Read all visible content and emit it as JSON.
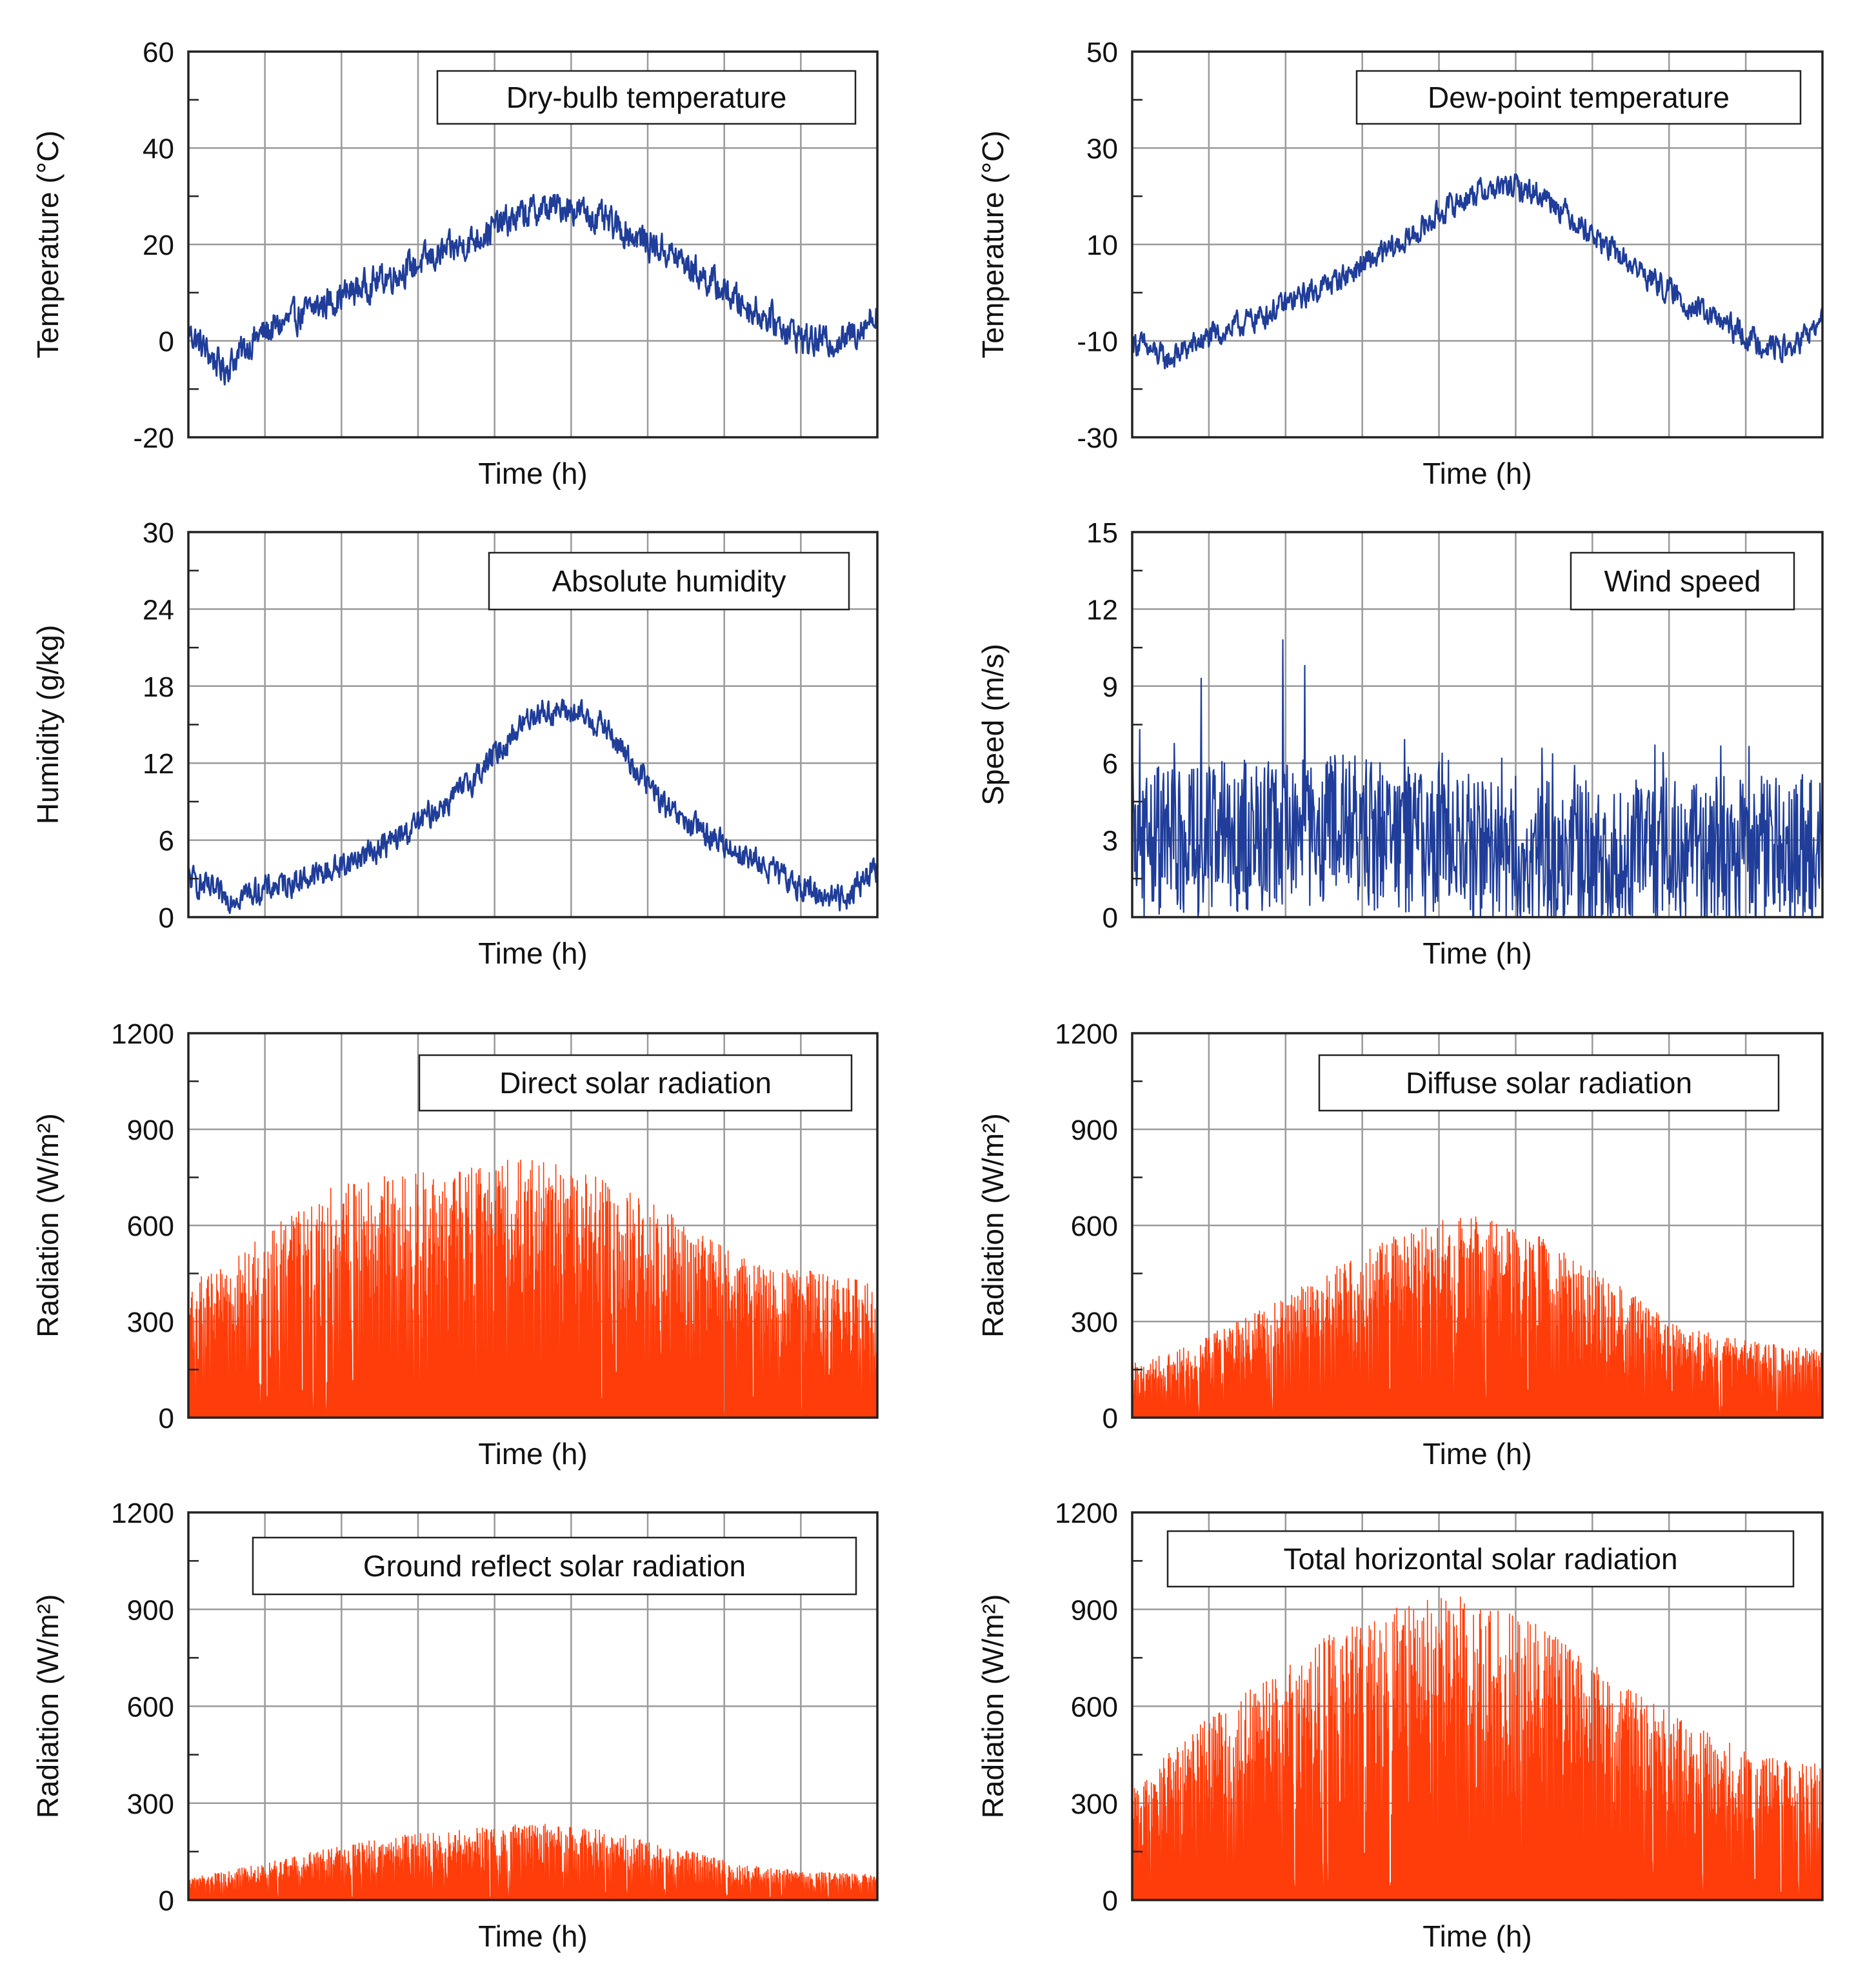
{
  "chart_data": [
    {
      "type": "line",
      "legend": "Dry-bulb temperature",
      "xlabel": "Time (h)",
      "ylabel": "Temperature (°C)",
      "ylim": [
        -20,
        60
      ],
      "yticks": [
        "-20",
        "0",
        "20",
        "40",
        "60"
      ],
      "grid": true,
      "legend_position": "top-right",
      "color": "#1f3d99",
      "series": [
        {
          "name": "Dry-bulb temperature",
          "envelope": {
            "t": [
              0,
              0.05,
              0.1,
              0.2,
              0.3,
              0.4,
              0.45,
              0.5,
              0.55,
              0.6,
              0.7,
              0.8,
              0.9,
              0.95,
              1.0
            ],
            "values": [
              2,
              -6,
              1,
              8,
              14,
              20,
              24,
              27,
              28,
              25,
              18,
              8,
              0,
              0,
              6
            ]
          },
          "noise": 5
        }
      ]
    },
    {
      "type": "line",
      "legend": "Dew-point temperature",
      "xlabel": "Time (h)",
      "ylabel": "Temperature (°C)",
      "ylim": [
        -30,
        50
      ],
      "yticks": [
        "-30",
        "-10",
        "10",
        "30",
        "50"
      ],
      "grid": true,
      "legend_position": "top-right",
      "color": "#1f3d99",
      "series": [
        {
          "name": "Dew-point temperature",
          "envelope": {
            "t": [
              0,
              0.05,
              0.1,
              0.2,
              0.3,
              0.4,
              0.45,
              0.5,
              0.55,
              0.6,
              0.7,
              0.8,
              0.9,
              0.95,
              1.0
            ],
            "values": [
              -10,
              -14,
              -10,
              -4,
              3,
              11,
              17,
              21,
              22,
              20,
              8,
              -2,
              -10,
              -12,
              -6
            ]
          },
          "noise": 4
        }
      ]
    },
    {
      "type": "line",
      "legend": "Absolute humidity",
      "xlabel": "Time (h)",
      "ylabel": "Humidity (g/kg)",
      "ylim": [
        0,
        30
      ],
      "yticks": [
        "0",
        "6",
        "12",
        "18",
        "24",
        "30"
      ],
      "grid": true,
      "legend_position": "top-right",
      "color": "#1f3d99",
      "series": [
        {
          "name": "Absolute humidity",
          "envelope": {
            "t": [
              0,
              0.05,
              0.1,
              0.2,
              0.3,
              0.4,
              0.45,
              0.5,
              0.55,
              0.6,
              0.7,
              0.8,
              0.9,
              0.95,
              1.0
            ],
            "values": [
              3,
              1.5,
              2,
              3.5,
              6,
              10,
              13,
              16,
              16,
              15,
              8,
              5,
              2,
              1.5,
              4
            ]
          },
          "noise": 1.6
        }
      ]
    },
    {
      "type": "line",
      "legend": "Wind speed",
      "xlabel": "Time (h)",
      "ylabel": "Speed (m/s)",
      "ylim": [
        0,
        15
      ],
      "yticks": [
        "0",
        "3",
        "6",
        "9",
        "12",
        "15"
      ],
      "grid": true,
      "legend_position": "top-right",
      "color": "#1f3d99",
      "series": [
        {
          "name": "Wind speed",
          "envelope": {
            "t": [
              0,
              0.1,
              0.2,
              0.3,
              0.4,
              0.5,
              0.6,
              0.7,
              0.8,
              0.9,
              1.0
            ],
            "values": [
              3,
              3,
              3.2,
              3.5,
              3,
              2.5,
              2.3,
              2.3,
              2.5,
              2.6,
              2.6
            ]
          },
          "noise": 3,
          "peaks": [
            10.8,
            9.8,
            9.3
          ]
        }
      ]
    },
    {
      "type": "area",
      "legend": "Direct solar radiation",
      "xlabel": "Time (h)",
      "ylabel": "Radiation (W/m²)",
      "ylim": [
        0,
        1200
      ],
      "yticks": [
        "0",
        "300",
        "600",
        "900",
        "1200"
      ],
      "grid": true,
      "legend_position": "top-right",
      "color": "#ff3d0a",
      "series": [
        {
          "name": "Direct solar radiation",
          "envelope": {
            "t": [
              0,
              0.05,
              0.1,
              0.2,
              0.3,
              0.4,
              0.45,
              0.5,
              0.55,
              0.6,
              0.7,
              0.8,
              0.9,
              1.0
            ],
            "values": [
              430,
              470,
              560,
              720,
              760,
              780,
              800,
              820,
              780,
              750,
              640,
              500,
              460,
              420
            ]
          },
          "peak": 850
        }
      ]
    },
    {
      "type": "area",
      "legend": "Diffuse solar radiation",
      "xlabel": "Time (h)",
      "ylabel": "Radiation (W/m²)",
      "ylim": [
        0,
        1200
      ],
      "yticks": [
        "0",
        "300",
        "600",
        "900",
        "1200"
      ],
      "grid": true,
      "legend_position": "top-right",
      "color": "#ff3d0a",
      "series": [
        {
          "name": "Diffuse solar radiation",
          "envelope": {
            "t": [
              0,
              0.05,
              0.1,
              0.2,
              0.3,
              0.4,
              0.45,
              0.5,
              0.55,
              0.6,
              0.7,
              0.8,
              0.9,
              1.0
            ],
            "values": [
              170,
              200,
              250,
              350,
              480,
              590,
              620,
              630,
              600,
              560,
              420,
              280,
              240,
              210
            ]
          },
          "peak": 640
        }
      ]
    },
    {
      "type": "area",
      "legend": "Ground reflect solar radiation",
      "xlabel": "Time (h)",
      "ylabel": "Radiation (W/m²)",
      "ylim": [
        0,
        1200
      ],
      "yticks": [
        "0",
        "300",
        "600",
        "900",
        "1200"
      ],
      "grid": true,
      "legend_position": "top-right",
      "color": "#ff3d0a",
      "series": [
        {
          "name": "Ground reflect solar radiation",
          "envelope": {
            "t": [
              0,
              0.05,
              0.1,
              0.2,
              0.3,
              0.4,
              0.45,
              0.5,
              0.55,
              0.6,
              0.7,
              0.8,
              0.9,
              1.0
            ],
            "values": [
              70,
              90,
              110,
              160,
              200,
              220,
              230,
              240,
              230,
              220,
              170,
              110,
              90,
              80
            ]
          },
          "peak": 250
        }
      ]
    },
    {
      "type": "area",
      "legend": "Total horizontal solar radiation",
      "xlabel": "Time (h)",
      "ylabel": "Radiation (W/m²)",
      "ylim": [
        0,
        1200
      ],
      "yticks": [
        "0",
        "300",
        "600",
        "900",
        "1200"
      ],
      "grid": true,
      "legend_position": "top-right",
      "color": "#ff3d0a",
      "series": [
        {
          "name": "Total horizontal solar radiation",
          "envelope": {
            "t": [
              0,
              0.05,
              0.1,
              0.2,
              0.3,
              0.4,
              0.45,
              0.5,
              0.55,
              0.6,
              0.7,
              0.8,
              0.9,
              1.0
            ],
            "values": [
              350,
              450,
              550,
              700,
              850,
              920,
              940,
              940,
              900,
              840,
              680,
              560,
              450,
              420
            ]
          },
          "peak": 960
        }
      ]
    }
  ]
}
